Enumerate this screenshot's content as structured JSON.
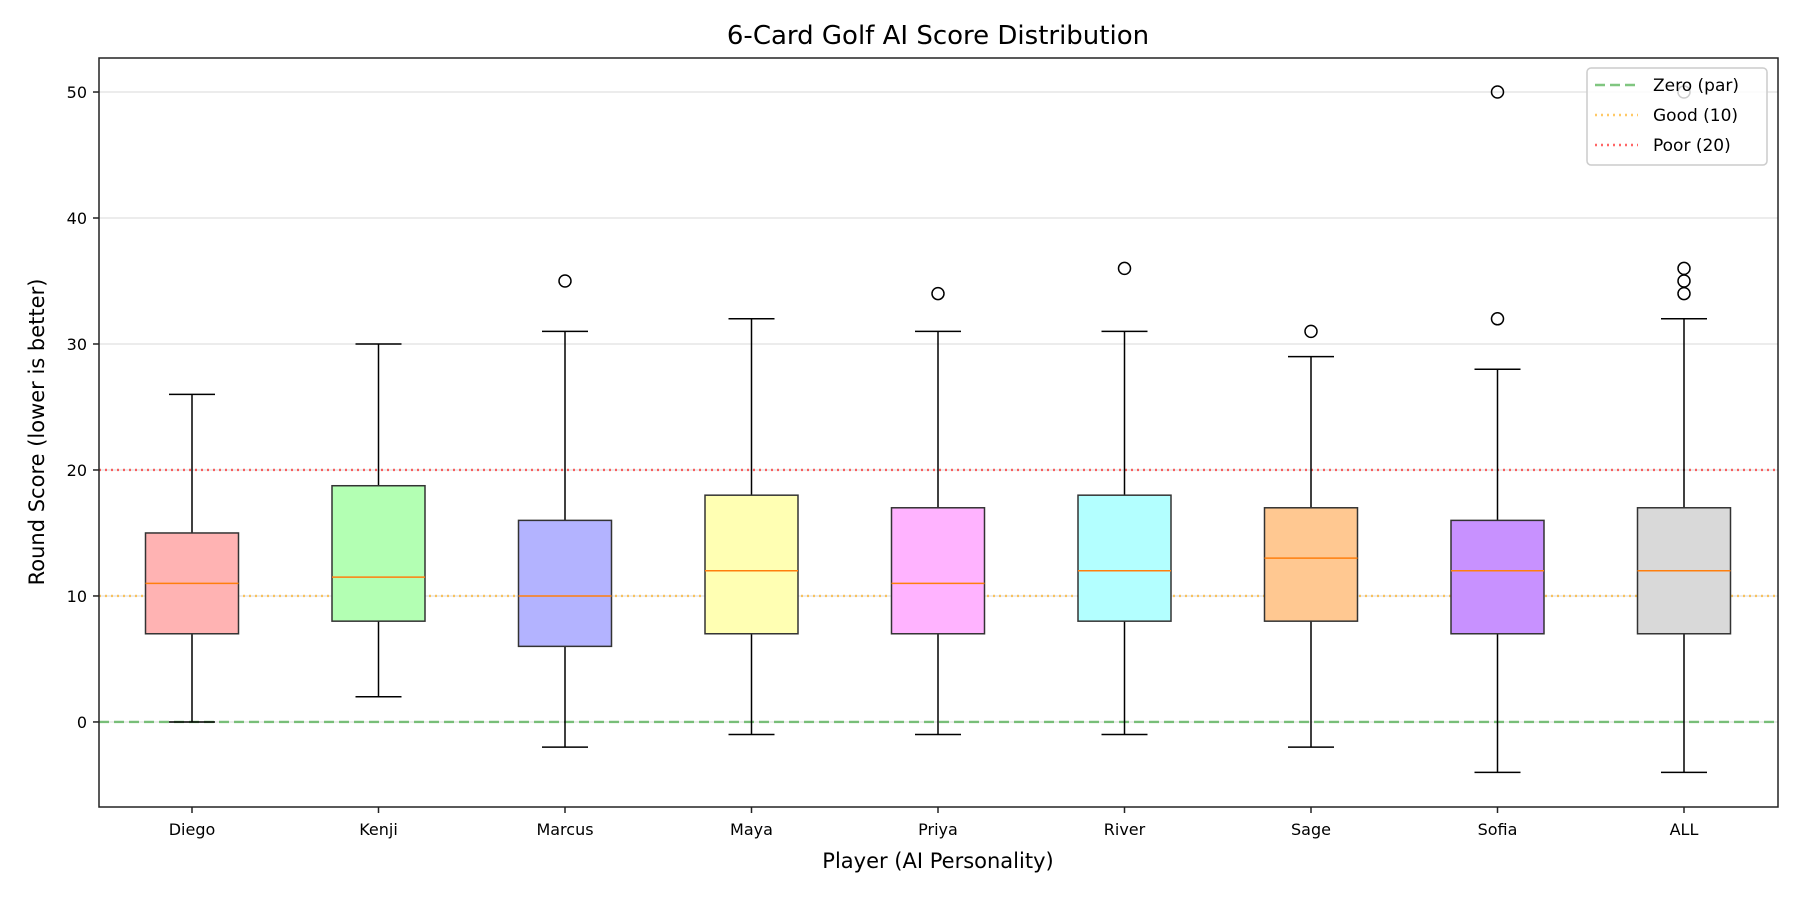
{
  "chart_data": {
    "type": "box",
    "title": "6-Card Golf AI Score Distribution",
    "xlabel": "Player (AI Personality)",
    "ylabel": "Round Score (lower is better)",
    "ylim": [
      -6.75,
      52.7
    ],
    "yticks": [
      0,
      10,
      20,
      30,
      40,
      50
    ],
    "grid": "y",
    "legend_position": "top-right",
    "categories": [
      "Diego",
      "Kenji",
      "Marcus",
      "Maya",
      "Priya",
      "River",
      "Sage",
      "Sofia",
      "ALL"
    ],
    "boxes": [
      {
        "name": "Diego",
        "whislo": 0,
        "q1": 7,
        "med": 11,
        "q3": 15,
        "whishi": 26,
        "fliers": [],
        "color": "#ffb3b3"
      },
      {
        "name": "Kenji",
        "whislo": 2,
        "q1": 8,
        "med": 11.5,
        "q3": 18.75,
        "whishi": 30,
        "fliers": [],
        "color": "#b3ffb3"
      },
      {
        "name": "Marcus",
        "whislo": -2,
        "q1": 6,
        "med": 10,
        "q3": 16,
        "whishi": 31,
        "fliers": [
          35
        ],
        "color": "#b3b3ff"
      },
      {
        "name": "Maya",
        "whislo": -1,
        "q1": 7,
        "med": 12,
        "q3": 18,
        "whishi": 32,
        "fliers": [],
        "color": "#ffffb3"
      },
      {
        "name": "Priya",
        "whislo": -1,
        "q1": 7,
        "med": 11,
        "q3": 17,
        "whishi": 31,
        "fliers": [
          34
        ],
        "color": "#ffb3ff"
      },
      {
        "name": "River",
        "whislo": -1,
        "q1": 8,
        "med": 12,
        "q3": 18,
        "whishi": 31,
        "fliers": [
          36
        ],
        "color": "#b3ffff"
      },
      {
        "name": "Sage",
        "whislo": -2,
        "q1": 8,
        "med": 13,
        "q3": 17,
        "whishi": 29,
        "fliers": [
          31
        ],
        "color": "#ffc891"
      },
      {
        "name": "Sofia",
        "whislo": -4,
        "q1": 7,
        "med": 12,
        "q3": 16,
        "whishi": 28,
        "fliers": [
          32,
          50
        ],
        "color": "#c891ff"
      },
      {
        "name": "ALL",
        "whislo": -4,
        "q1": 7,
        "med": 12,
        "q3": 17,
        "whishi": 32,
        "fliers": [
          34,
          35,
          36,
          50
        ],
        "color": "#d9d9d9"
      }
    ],
    "reference_lines": [
      {
        "label": "Zero (par)",
        "y": 0,
        "color": "#2ca02c",
        "style": "dashed"
      },
      {
        "label": "Good (10)",
        "y": 10,
        "color": "#ffa500",
        "style": "dotted"
      },
      {
        "label": "Poor (20)",
        "y": 20,
        "color": "#ff0000",
        "style": "dotted"
      }
    ],
    "median_color": "#ff7f0e"
  }
}
